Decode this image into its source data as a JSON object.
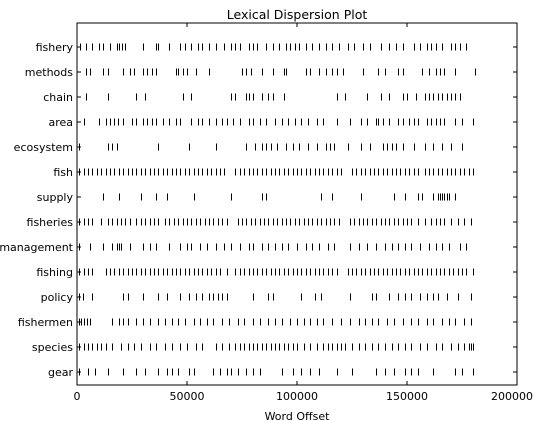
{
  "chart_data": {
    "type": "scatter",
    "title": "Lexical Dispersion Plot",
    "xlabel": "Word Offset",
    "ylabel": "",
    "xlim": [
      0,
      200000
    ],
    "xticks": [
      0,
      50000,
      100000,
      150000,
      200000
    ],
    "xtick_labels": [
      "0",
      "50000",
      "100000",
      "150000",
      "200000"
    ],
    "grid": false,
    "marker": "|",
    "marker_color": "#000000",
    "words": [
      {
        "word": "fishery",
        "offsets": [
          1500,
          4000,
          7000,
          10000,
          12000,
          15000,
          18000,
          19000,
          20500,
          22000,
          30000,
          36000,
          37000,
          42000,
          47000,
          49000,
          52000,
          55000,
          57000,
          60000,
          63000,
          67000,
          70000,
          72000,
          74000,
          78000,
          80000,
          82000,
          86000,
          89000,
          92000,
          95000,
          97000,
          99000,
          101000,
          104000,
          107000,
          110000,
          113000,
          116000,
          119000,
          123000,
          126000,
          130000,
          133000,
          138000,
          142000,
          145000,
          148000,
          153000,
          156000,
          159000,
          161000,
          163000,
          166000,
          170000,
          172000,
          174000,
          177000
        ]
      },
      {
        "word": "methods",
        "offsets": [
          4000,
          6000,
          12000,
          14000,
          21000,
          24000,
          26000,
          30000,
          32000,
          34000,
          36000,
          45000,
          46000,
          48000,
          50000,
          54000,
          60000,
          75000,
          77000,
          79000,
          84000,
          89000,
          94000,
          95000,
          104000,
          106000,
          110000,
          113000,
          116000,
          118000,
          121000,
          130000,
          137000,
          140000,
          146000,
          148000,
          157000,
          160000,
          163000,
          165000,
          167000,
          172000,
          181000
        ]
      },
      {
        "word": "chain",
        "offsets": [
          4000,
          14000,
          27000,
          31000,
          48000,
          52000,
          70000,
          72000,
          77000,
          78000,
          80000,
          84000,
          87000,
          89000,
          94000,
          118000,
          122000,
          132000,
          138000,
          142000,
          148000,
          150000,
          154000,
          158000,
          160000,
          162000,
          164000,
          166000,
          168000,
          170000,
          172000,
          174000
        ]
      },
      {
        "word": "area",
        "offsets": [
          3000,
          10000,
          13000,
          15000,
          17000,
          18500,
          21000,
          25000,
          27000,
          30000,
          32000,
          34000,
          36000,
          39000,
          42000,
          45000,
          47000,
          52000,
          55000,
          57000,
          60000,
          63000,
          66000,
          68000,
          71000,
          74000,
          78000,
          80000,
          83000,
          86000,
          90000,
          93000,
          96000,
          99000,
          102000,
          105000,
          109000,
          112000,
          118000,
          124000,
          129000,
          132000,
          136000,
          137000,
          139000,
          142000,
          146000,
          148000,
          151000,
          153000,
          155000,
          159000,
          161000,
          163000,
          165000,
          167000,
          172000,
          175000,
          180000
        ]
      },
      {
        "word": "ecosystem",
        "offsets": [
          1000,
          14000,
          16000,
          18000,
          37000,
          51000,
          63000,
          77000,
          81000,
          84000,
          86000,
          88000,
          91000,
          95000,
          98000,
          101000,
          105000,
          109000,
          113000,
          115000,
          117000,
          123000,
          129000,
          133000,
          139000,
          141000,
          143000,
          145000,
          148000,
          153000,
          158000,
          162000,
          166000,
          170000,
          175000
        ]
      },
      {
        "word": "fish",
        "offsets": [
          1000,
          3000,
          5000,
          7000,
          9000,
          11000,
          13000,
          15000,
          17000,
          19000,
          21000,
          23000,
          25000,
          27000,
          29000,
          31000,
          33000,
          35000,
          37000,
          39000,
          41000,
          43000,
          45000,
          47000,
          49000,
          51000,
          53000,
          55000,
          57000,
          59000,
          61000,
          63000,
          65000,
          67000,
          72000,
          74000,
          76000,
          78000,
          80000,
          82000,
          84000,
          86000,
          88000,
          90000,
          92000,
          94000,
          96000,
          98000,
          100000,
          102000,
          104000,
          106000,
          108000,
          110000,
          112000,
          114000,
          116000,
          118000,
          120000,
          125000,
          127000,
          129000,
          131000,
          133000,
          135000,
          137000,
          139000,
          141000,
          143000,
          145000,
          147000,
          149000,
          151000,
          153000,
          155000,
          158000,
          160000,
          162000,
          164000,
          166000,
          168000,
          170000,
          172000,
          174000,
          176000,
          178000,
          180000
        ]
      },
      {
        "word": "supply",
        "offsets": [
          12000,
          19000,
          29000,
          36000,
          41000,
          53000,
          70000,
          84000,
          86000,
          111000,
          116000,
          129000,
          144000,
          149000,
          155000,
          157000,
          162000,
          164000,
          165000,
          166000,
          167000,
          168000,
          169000,
          172000
        ]
      },
      {
        "word": "fisheries",
        "offsets": [
          1000,
          3000,
          5000,
          7000,
          11000,
          14000,
          16000,
          18000,
          20000,
          22000,
          24000,
          27000,
          29000,
          31000,
          33000,
          35000,
          37000,
          40000,
          42000,
          44000,
          46000,
          48000,
          50000,
          52000,
          54000,
          56000,
          58000,
          60000,
          62000,
          64000,
          66000,
          68000,
          73000,
          75000,
          77000,
          79000,
          81000,
          83000,
          85000,
          87000,
          89000,
          91000,
          93000,
          95000,
          97000,
          99000,
          101000,
          103000,
          105000,
          107000,
          109000,
          111000,
          113000,
          115000,
          117000,
          119000,
          124000,
          126000,
          128000,
          130000,
          132000,
          134000,
          136000,
          138000,
          140000,
          142000,
          144000,
          146000,
          148000,
          150000,
          152000,
          155000,
          158000,
          161000,
          163000,
          165000,
          167000,
          170000,
          173000,
          176000,
          179000
        ]
      },
      {
        "word": "management",
        "offsets": [
          1000,
          6000,
          12000,
          16000,
          18000,
          19000,
          20000,
          24000,
          30000,
          33000,
          36000,
          42000,
          47000,
          50000,
          52000,
          56000,
          59000,
          63000,
          67000,
          70000,
          74000,
          78000,
          80000,
          84000,
          87000,
          90000,
          93000,
          96000,
          100000,
          104000,
          107000,
          110000,
          114000,
          117000,
          124000,
          128000,
          132000,
          136000,
          140000,
          143000,
          146000,
          149000,
          152000,
          156000,
          160000,
          163000,
          166000,
          169000,
          174000,
          177000
        ]
      },
      {
        "word": "fishing",
        "offsets": [
          1000,
          3000,
          5000,
          7000,
          13000,
          15000,
          17000,
          19000,
          21000,
          23000,
          25000,
          27000,
          29000,
          31000,
          33000,
          35000,
          37000,
          39000,
          41000,
          43000,
          45000,
          47000,
          49000,
          51000,
          53000,
          55000,
          57000,
          59000,
          61000,
          63000,
          65000,
          68000,
          72000,
          74000,
          76000,
          78000,
          80000,
          82000,
          84000,
          86000,
          88000,
          90000,
          92000,
          94000,
          96000,
          98000,
          100000,
          102000,
          104000,
          106000,
          108000,
          110000,
          112000,
          114000,
          116000,
          118000,
          123000,
          125000,
          127000,
          129000,
          131000,
          133000,
          135000,
          137000,
          139000,
          141000,
          143000,
          145000,
          147000,
          149000,
          151000,
          153000,
          155000,
          157000,
          159000,
          161000,
          163000,
          165000,
          167000,
          169000,
          171000,
          173000,
          175000,
          177000,
          180000
        ]
      },
      {
        "word": "policy",
        "offsets": [
          1000,
          2500,
          7000,
          21000,
          23000,
          30000,
          37000,
          41000,
          47000,
          51000,
          54000,
          57000,
          60000,
          62000,
          64000,
          66000,
          68000,
          80000,
          87000,
          89000,
          102000,
          108000,
          111000,
          124000,
          134000,
          136000,
          142000,
          146000,
          149000,
          152000,
          156000,
          159000,
          162000,
          164000,
          168000,
          173000,
          179000
        ]
      },
      {
        "word": "fishermen",
        "offsets": [
          1000,
          2000,
          3000,
          4500,
          6000,
          16000,
          19000,
          21000,
          23000,
          27000,
          30000,
          33000,
          37000,
          40000,
          43000,
          46000,
          49000,
          53000,
          56000,
          59000,
          62000,
          66000,
          69000,
          73000,
          76000,
          80000,
          83000,
          87000,
          90000,
          93000,
          97000,
          100000,
          103000,
          106000,
          109000,
          112000,
          116000,
          120000,
          124000,
          128000,
          131000,
          134000,
          137000,
          141000,
          144000,
          148000,
          152000,
          155000,
          159000,
          162000,
          166000,
          169000,
          172000,
          176000,
          179000
        ]
      },
      {
        "word": "species",
        "offsets": [
          1000,
          3000,
          5000,
          7000,
          9000,
          11000,
          13000,
          16000,
          20000,
          23000,
          26000,
          29000,
          33000,
          36000,
          40000,
          43000,
          47000,
          50000,
          54000,
          57000,
          63000,
          66000,
          69000,
          72000,
          74000,
          76000,
          78000,
          80000,
          82000,
          84000,
          86000,
          88000,
          90000,
          92000,
          94000,
          96000,
          98000,
          100000,
          103000,
          106000,
          109000,
          112000,
          114000,
          116000,
          118000,
          120000,
          122000,
          125000,
          128000,
          131000,
          134000,
          137000,
          140000,
          143000,
          146000,
          149000,
          152000,
          156000,
          159000,
          163000,
          166000,
          170000,
          173000,
          176000,
          178000,
          179000,
          180000
        ]
      },
      {
        "word": "gear",
        "offsets": [
          1000,
          5000,
          8000,
          14000,
          21000,
          27000,
          31000,
          37000,
          41000,
          43000,
          46000,
          51000,
          53000,
          62000,
          65000,
          68000,
          70000,
          73000,
          77000,
          80000,
          83000,
          93000,
          98000,
          102000,
          106000,
          110000,
          118000,
          125000,
          136000,
          140000,
          144000,
          149000,
          152000,
          155000,
          162000,
          172000,
          175000,
          180000
        ]
      }
    ]
  }
}
